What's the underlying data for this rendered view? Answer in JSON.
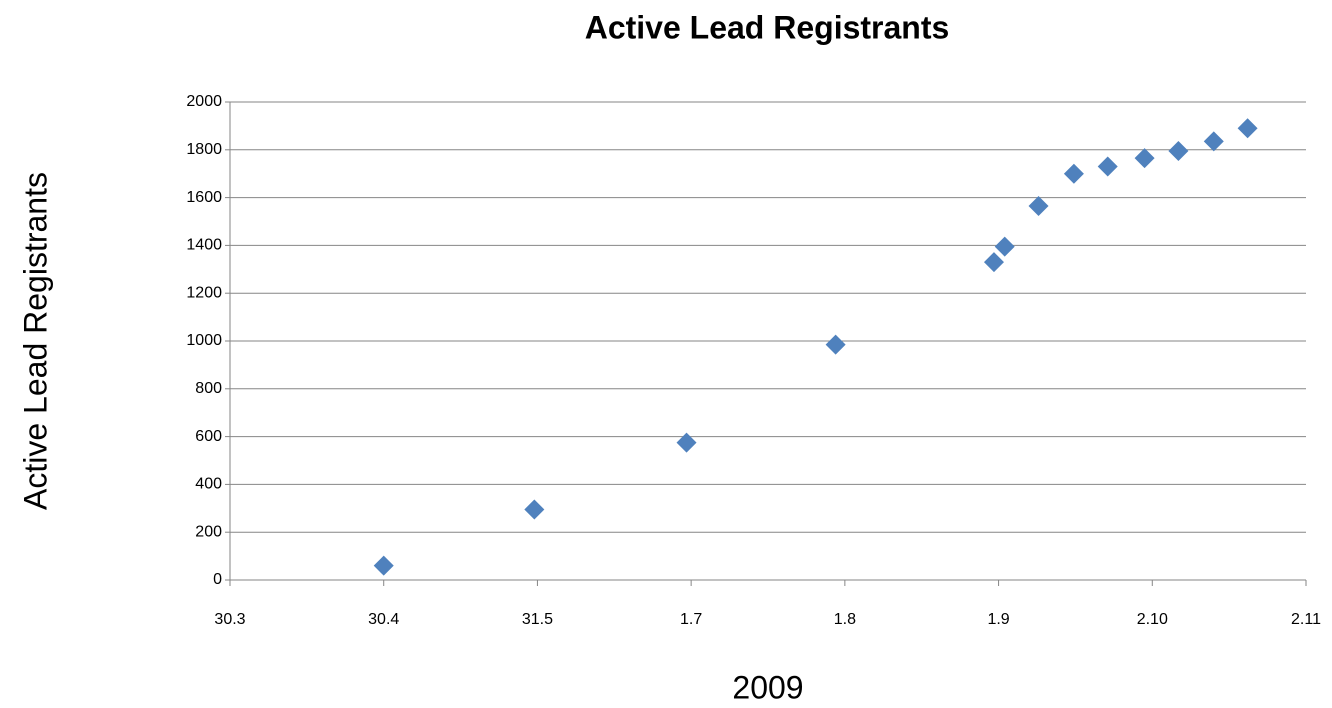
{
  "chart_data": {
    "type": "scatter",
    "title": "Active Lead Registrants",
    "x_label": "2009",
    "y_label": "Active Lead Registrants",
    "series": [
      {
        "name": "Active Lead Registrants",
        "color": "#4f81bd",
        "x": [
          1.0,
          1.98,
          2.97,
          3.94,
          4.97,
          5.04,
          5.26,
          5.49,
          5.71,
          5.95,
          6.17,
          6.4,
          6.62
        ],
        "values": [
          60,
          295,
          575,
          985,
          1330,
          1395,
          1565,
          1700,
          1730,
          1765,
          1795,
          1835,
          1890
        ]
      }
    ],
    "xlim": [
      0,
      7
    ],
    "xticks": [
      {
        "value": 0,
        "label": "30.3"
      },
      {
        "value": 1,
        "label": "30.4"
      },
      {
        "value": 2,
        "label": "31.5"
      },
      {
        "value": 3,
        "label": "1.7"
      },
      {
        "value": 4,
        "label": "1.8"
      },
      {
        "value": 5,
        "label": "1.9"
      },
      {
        "value": 6,
        "label": "2.10"
      },
      {
        "value": 7,
        "label": "2.11"
      }
    ],
    "ylim": [
      0,
      2000
    ],
    "yticks": [
      0,
      200,
      400,
      600,
      800,
      1000,
      1200,
      1400,
      1600,
      1800,
      2000
    ],
    "grid": true
  }
}
